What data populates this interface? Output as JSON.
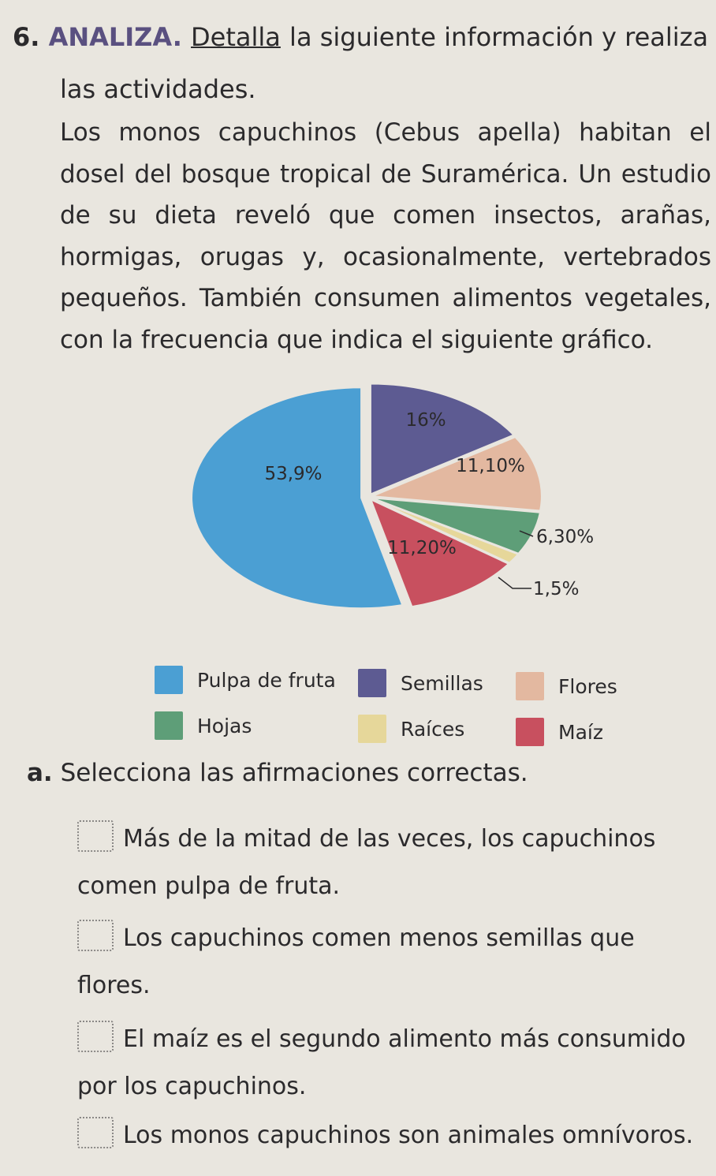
{
  "activity": {
    "number": "6.",
    "keyword": "ANALIZA.",
    "underlined": "Detalla",
    "instruction_rest": "la siguiente información y realiza",
    "instruction_line2": "las actividades."
  },
  "paragraph": {
    "text": "Los monos capuchinos (Cebus apella) habitan el dosel del bosque tropical de Suramérica. Un estudio de su dieta reveló que comen insectos, arañas, hormigas, orugas y, ocasionalmente, vertebrados pequeños. También consumen alimentos vegetales, con la frecuencia que indica el siguiente gráfico."
  },
  "chart_data": {
    "type": "pie",
    "title": "",
    "slices": [
      {
        "name": "Pulpa de fruta",
        "value": 53.9,
        "label": "53,9%",
        "color": "#4b9fd3"
      },
      {
        "name": "Semillas",
        "value": 16,
        "label": "16%",
        "color": "#5d5b92"
      },
      {
        "name": "Flores",
        "value": 11.1,
        "label": "11,10%",
        "color": "#e3b8a0"
      },
      {
        "name": "Hojas",
        "value": 6.3,
        "label": "6,30%",
        "color": "#5e9e78"
      },
      {
        "name": "Raíces",
        "value": 1.5,
        "label": "1,5%",
        "color": "#e6d79a"
      },
      {
        "name": "Maíz",
        "value": 11.2,
        "label": "11,20%",
        "color": "#c8505f"
      }
    ]
  },
  "legend": [
    {
      "label": "Pulpa de fruta",
      "color": "#4b9fd3"
    },
    {
      "label": "Semillas",
      "color": "#5d5b92"
    },
    {
      "label": "Flores",
      "color": "#e3b8a0"
    },
    {
      "label": "Hojas",
      "color": "#5e9e78"
    },
    {
      "label": "Raíces",
      "color": "#e6d79a"
    },
    {
      "label": "Maíz",
      "color": "#c8505f"
    }
  ],
  "question": {
    "letter": "a.",
    "text": "Selecciona las afirmaciones correctas."
  },
  "options": [
    {
      "line1": "Más de la mitad de las veces, los capuchinos",
      "line2": "comen pulpa de fruta."
    },
    {
      "line1": "Los capuchinos comen menos semillas que",
      "line2": "flores."
    },
    {
      "line1": "El maíz es el segundo alimento más consumido",
      "line2": "por los capuchinos."
    },
    {
      "line1": "Los monos capuchinos son animales omnívoros.",
      "line2": ""
    }
  ]
}
